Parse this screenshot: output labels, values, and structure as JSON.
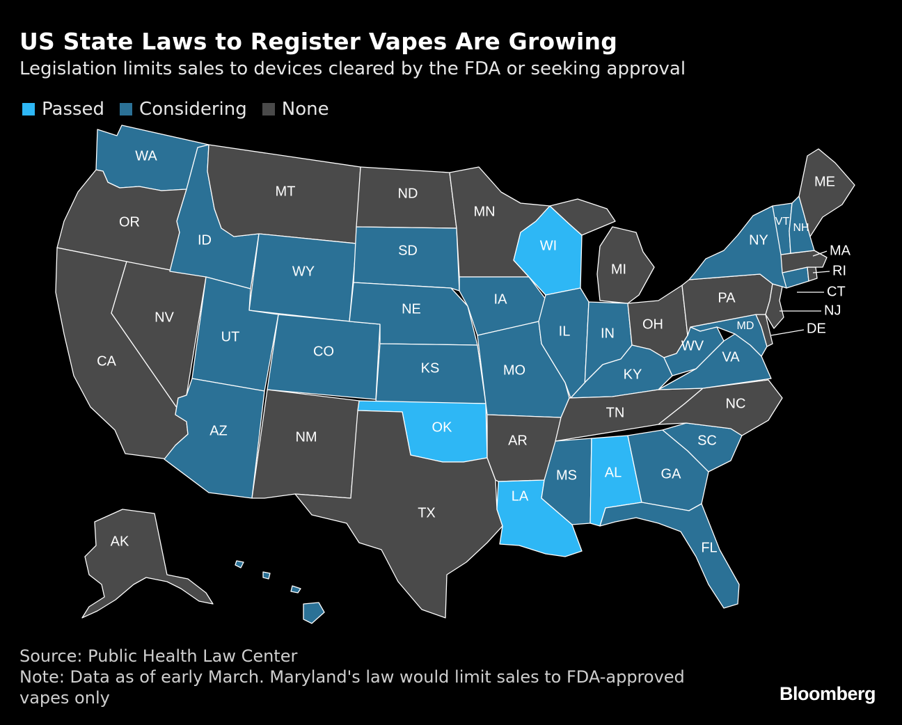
{
  "header": {
    "title": "US State Laws to Register Vapes Are Growing",
    "subtitle": "Legislation limits sales to devices cleared by the FDA or seeking approval"
  },
  "legend": [
    {
      "key": "passed",
      "label": "Passed",
      "color": "#2eb7f5"
    },
    {
      "key": "considering",
      "label": "Considering",
      "color": "#2b7196"
    },
    {
      "key": "none",
      "label": "None",
      "color": "#4a4a4a"
    }
  ],
  "states": {
    "WA": {
      "label": "WA",
      "status": "considering"
    },
    "OR": {
      "label": "OR",
      "status": "none"
    },
    "CA": {
      "label": "CA",
      "status": "none"
    },
    "NV": {
      "label": "NV",
      "status": "none"
    },
    "ID": {
      "label": "ID",
      "status": "considering"
    },
    "MT": {
      "label": "MT",
      "status": "none"
    },
    "WY": {
      "label": "WY",
      "status": "considering"
    },
    "UT": {
      "label": "UT",
      "status": "considering"
    },
    "AZ": {
      "label": "AZ",
      "status": "considering"
    },
    "CO": {
      "label": "CO",
      "status": "considering"
    },
    "NM": {
      "label": "NM",
      "status": "none"
    },
    "ND": {
      "label": "ND",
      "status": "none"
    },
    "SD": {
      "label": "SD",
      "status": "considering"
    },
    "NE": {
      "label": "NE",
      "status": "considering"
    },
    "KS": {
      "label": "KS",
      "status": "considering"
    },
    "OK": {
      "label": "OK",
      "status": "passed"
    },
    "TX": {
      "label": "TX",
      "status": "none"
    },
    "MN": {
      "label": "MN",
      "status": "none"
    },
    "IA": {
      "label": "IA",
      "status": "considering"
    },
    "MO": {
      "label": "MO",
      "status": "considering"
    },
    "AR": {
      "label": "AR",
      "status": "none"
    },
    "LA": {
      "label": "LA",
      "status": "passed"
    },
    "WI": {
      "label": "WI",
      "status": "passed"
    },
    "IL": {
      "label": "IL",
      "status": "considering"
    },
    "MI": {
      "label": "MI",
      "status": "none"
    },
    "IN": {
      "label": "IN",
      "status": "considering"
    },
    "OH": {
      "label": "OH",
      "status": "none"
    },
    "KY": {
      "label": "KY",
      "status": "considering"
    },
    "TN": {
      "label": "TN",
      "status": "none"
    },
    "MS": {
      "label": "MS",
      "status": "considering"
    },
    "AL": {
      "label": "AL",
      "status": "passed"
    },
    "GA": {
      "label": "GA",
      "status": "considering"
    },
    "FL": {
      "label": "FL",
      "status": "considering"
    },
    "SC": {
      "label": "SC",
      "status": "considering"
    },
    "NC": {
      "label": "NC",
      "status": "none"
    },
    "VA": {
      "label": "VA",
      "status": "considering"
    },
    "WV": {
      "label": "WV",
      "status": "considering"
    },
    "MD": {
      "label": "MD",
      "status": "considering"
    },
    "DE": {
      "label": "DE",
      "status": "none"
    },
    "PA": {
      "label": "PA",
      "status": "none"
    },
    "NJ": {
      "label": "NJ",
      "status": "none"
    },
    "NY": {
      "label": "NY",
      "status": "considering"
    },
    "CT": {
      "label": "CT",
      "status": "considering"
    },
    "RI": {
      "label": "RI",
      "status": "none"
    },
    "MA": {
      "label": "MA",
      "status": "none"
    },
    "VT": {
      "label": "VT",
      "status": "considering"
    },
    "NH": {
      "label": "NH",
      "status": "considering"
    },
    "ME": {
      "label": "ME",
      "status": "none"
    },
    "AK": {
      "label": "AK",
      "status": "none"
    },
    "HI": {
      "label": "",
      "status": "considering"
    }
  },
  "footer": {
    "source": "Source: Public Health Law Center",
    "note": "Note: Data as of early March. Maryland's law would limit sales to FDA-approved vapes only"
  },
  "brand": "Bloomberg"
}
